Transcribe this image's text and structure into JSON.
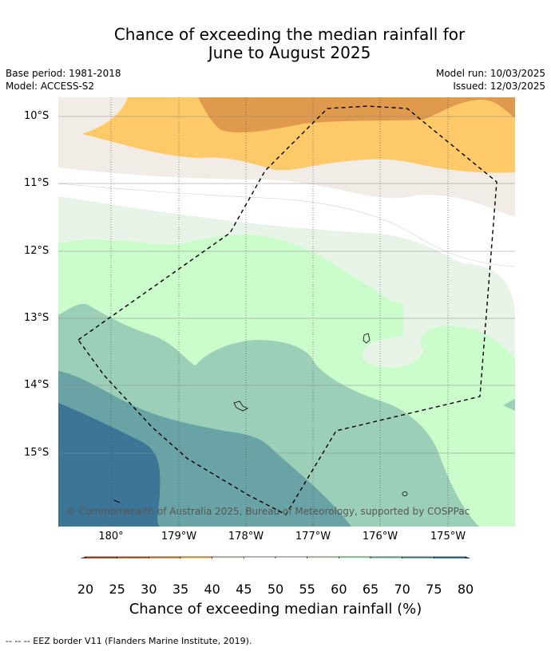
{
  "title_line1": "Chance of exceeding the median rainfall for",
  "title_line2": "June to August 2025",
  "base_period": "Base period: 1981-2018",
  "model": "Model: ACCESS-S2",
  "model_run": "Model run: 10/03/2025",
  "issued": "Issued: 12/03/2025",
  "lat_labels": [
    "10°S",
    "11°S",
    "12°S",
    "13°S",
    "14°S",
    "15°S"
  ],
  "lon_labels": [
    "180°",
    "179°W",
    "178°W",
    "177°W",
    "176°W",
    "175°W"
  ],
  "copyright": "© Commonwealth of Australia 2025, Bureau of Meteorology, supported by COSPPac",
  "colorbar": {
    "ticks": [
      "20",
      "25",
      "30",
      "35",
      "40",
      "45",
      "50",
      "55",
      "60",
      "65",
      "70",
      "75",
      "80"
    ],
    "colors": [
      "#b34f29",
      "#cc6a3c",
      "#e09a4d",
      "#fec968",
      "#f2ece6",
      "#ffffff",
      "#ffffff",
      "#e9f4e9",
      "#cbfccb",
      "#9ccfb8",
      "#6aa3a6",
      "#3d7597"
    ],
    "under_color": "#9c4428",
    "over_color": "#0e4a88",
    "label": "Chance of exceeding median rainfall (%)"
  },
  "footnote": "--  --  -- EEZ border V11 (Flanders Marine Institute, 2019)."
}
